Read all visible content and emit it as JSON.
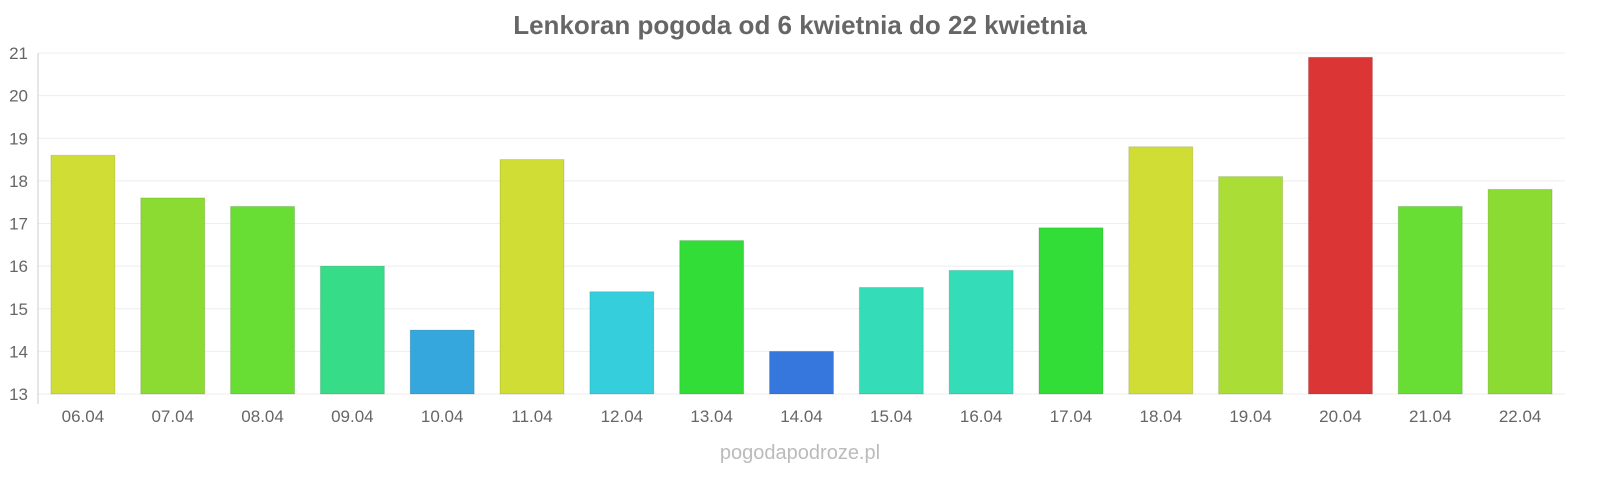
{
  "chart_data": {
    "type": "bar",
    "title": "Lenkoran pogoda od 6 kwietnia do 22 kwietnia",
    "xlabel": "",
    "ylabel": "",
    "ylim": [
      13,
      21
    ],
    "yticks": [
      13,
      14,
      15,
      16,
      17,
      18,
      19,
      20,
      21
    ],
    "grid": true,
    "categories": [
      "06.04",
      "07.04",
      "08.04",
      "09.04",
      "10.04",
      "11.04",
      "12.04",
      "13.04",
      "14.04",
      "15.04",
      "16.04",
      "17.04",
      "18.04",
      "19.04",
      "20.04",
      "21.04",
      "22.04"
    ],
    "values": [
      18.6,
      17.6,
      17.4,
      16.0,
      14.5,
      18.5,
      15.4,
      16.6,
      14.0,
      15.5,
      15.9,
      16.9,
      18.8,
      18.1,
      20.9,
      17.4,
      17.8
    ],
    "colors": [
      "#cfdd35",
      "#8bdb33",
      "#68dd34",
      "#36dc88",
      "#35a7dc",
      "#cfdd35",
      "#35cedc",
      "#33dd38",
      "#3577dc",
      "#35dcb8",
      "#35dcb8",
      "#33dd38",
      "#cfdd35",
      "#aadd35",
      "#dc3535",
      "#68dd34",
      "#8bdb33"
    ]
  },
  "credit": "pogodapodroze.pl"
}
